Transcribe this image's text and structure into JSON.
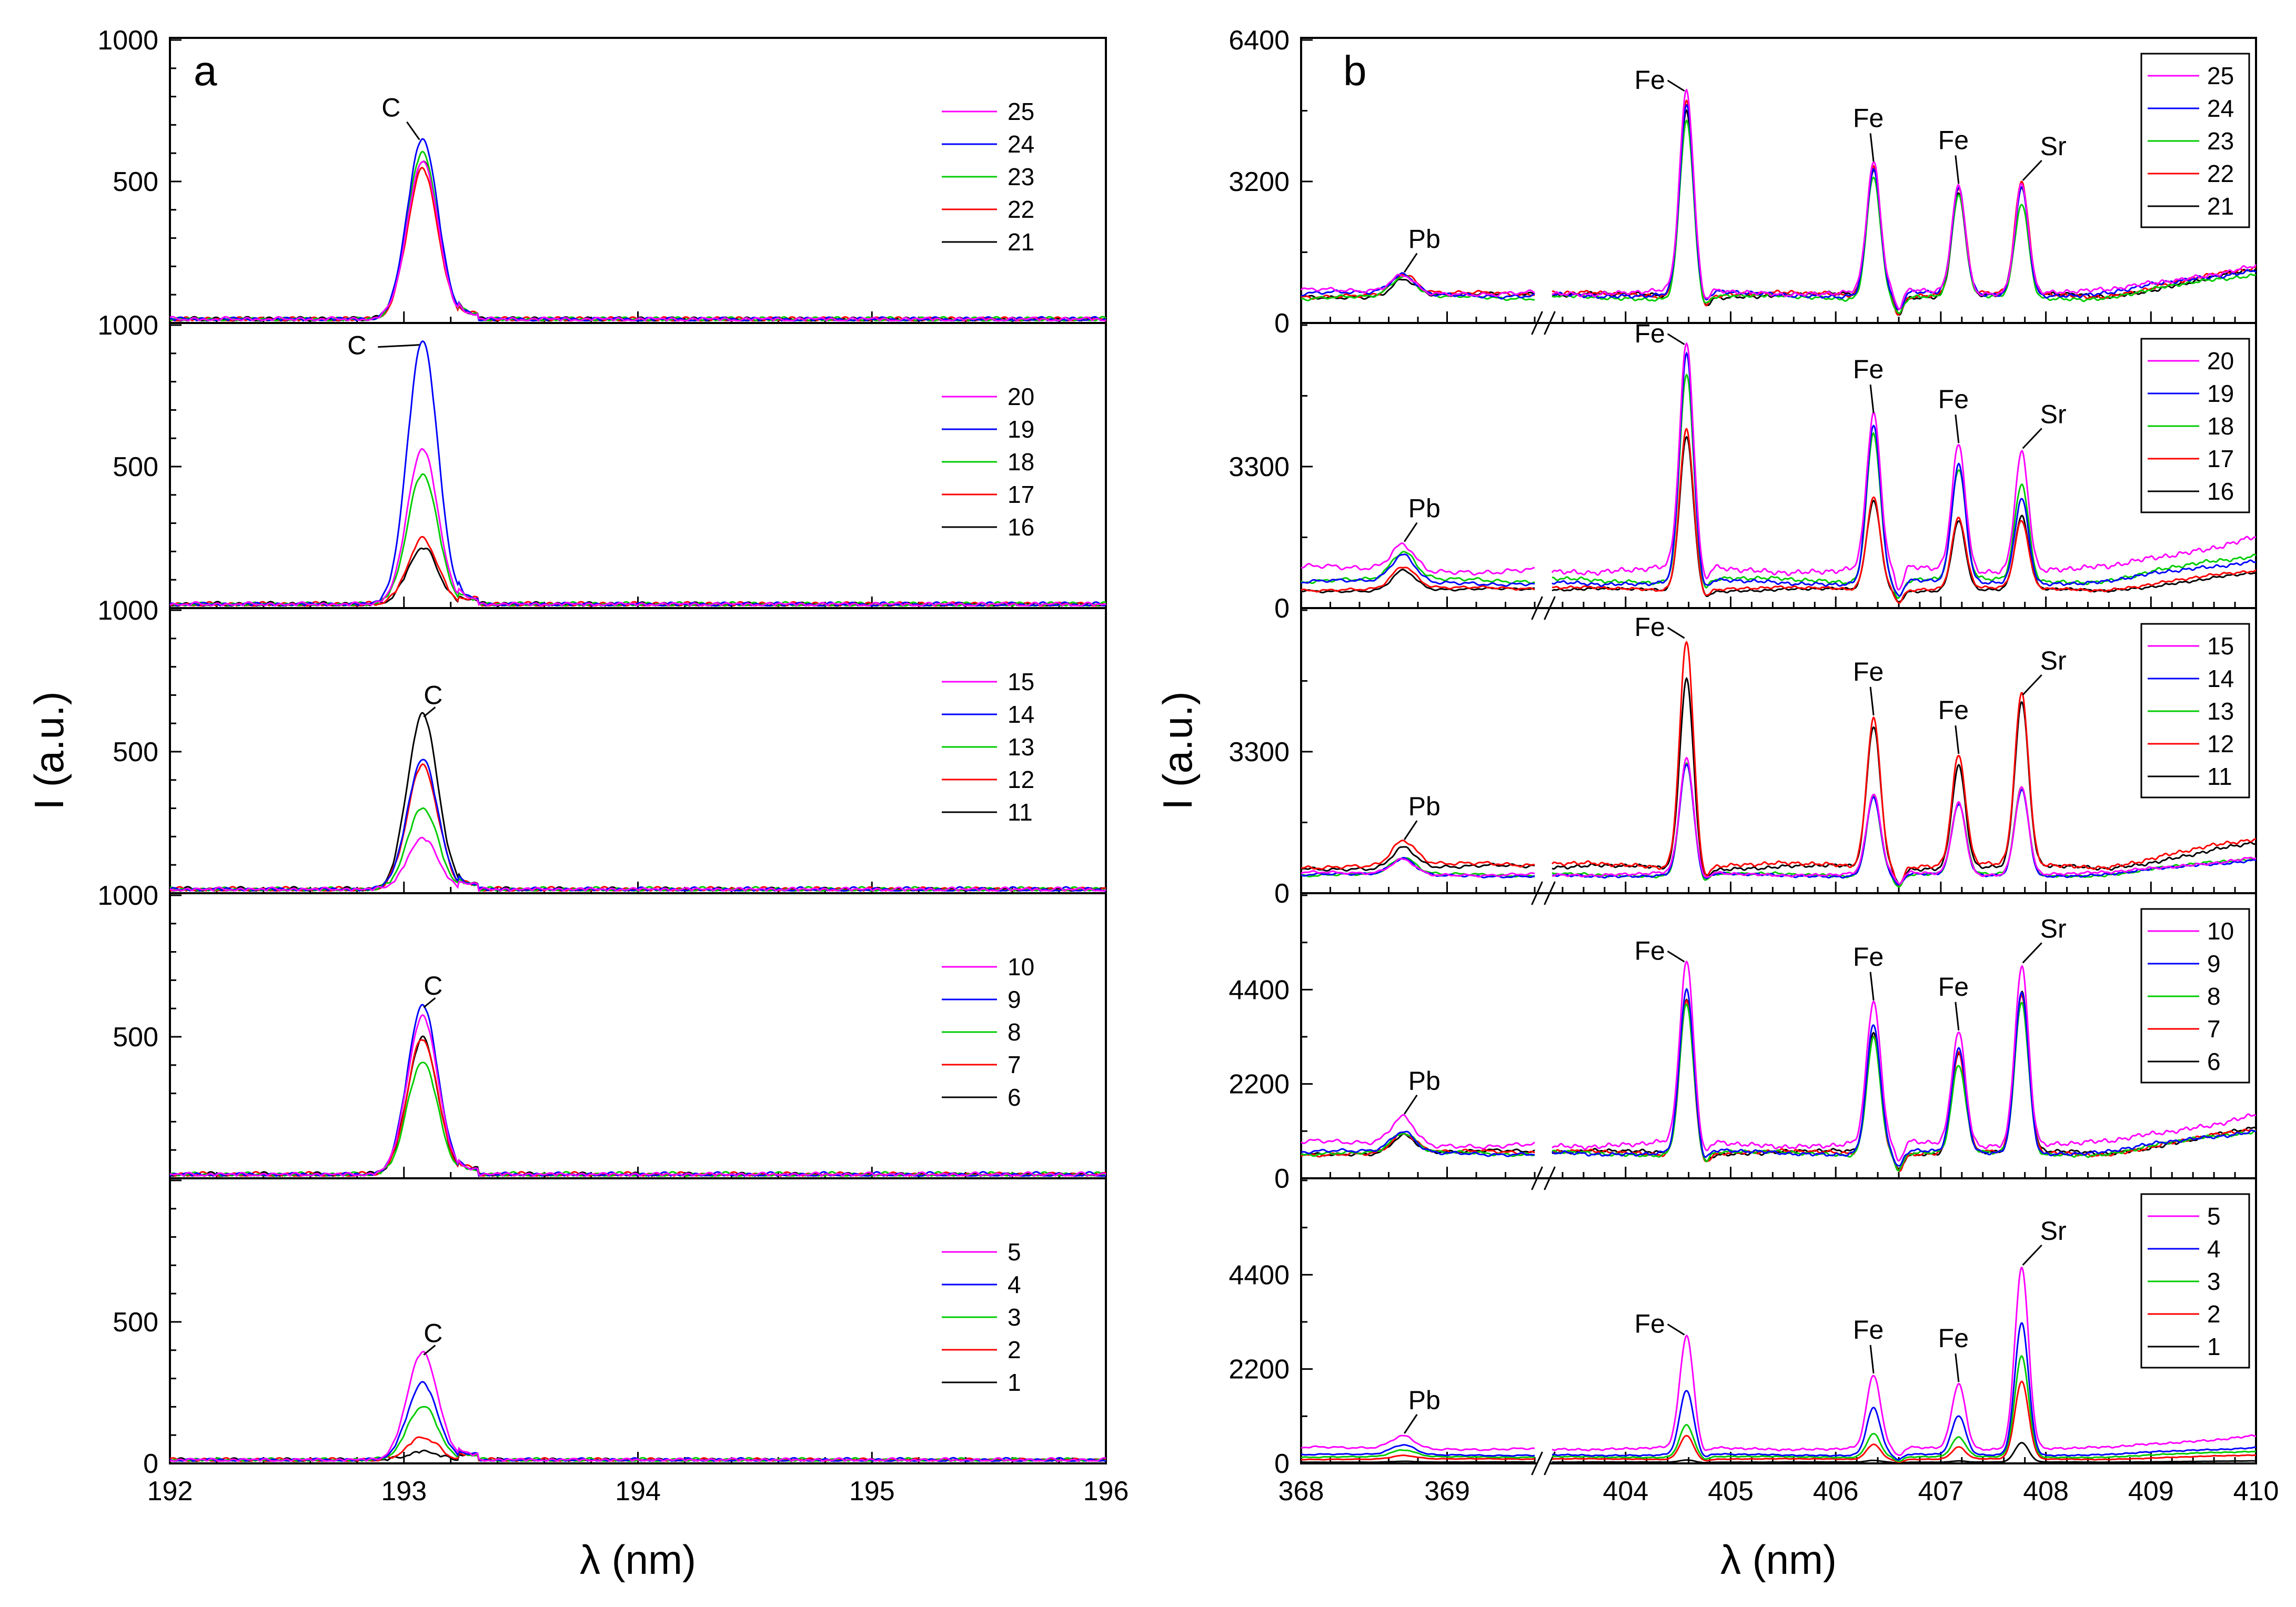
{
  "chart_data": [
    {
      "id": "a",
      "type": "line",
      "panel_letter": "a",
      "xlabel": "λ (nm)",
      "ylabel": "I (a.u.)",
      "xlim": [
        192,
        196
      ],
      "xticks": [
        "192",
        "193",
        "194",
        "195",
        "196"
      ],
      "x_tick_values": [
        192,
        193,
        194,
        195,
        196
      ],
      "subplots": [
        {
          "id": "a1",
          "ylim": [
            0,
            1000
          ],
          "yticks": [
            {
              "v": 500,
              "label": "500"
            },
            {
              "v": 1000,
              "label": "1000"
            }
          ],
          "legend": [
            "25",
            "24",
            "23",
            "22",
            "21"
          ],
          "series": [
            {
              "name": "25",
              "color": "#ff00ff",
              "peak": 560
            },
            {
              "name": "24",
              "color": "#0000ff",
              "peak": 640
            },
            {
              "name": "23",
              "color": "#00cc00",
              "peak": 590
            },
            {
              "name": "22",
              "color": "#ff0000",
              "peak": 530
            },
            {
              "name": "21",
              "color": "#000000",
              "peak": 560
            }
          ],
          "peaks": [
            {
              "element": "C",
              "x": 193.08
            }
          ],
          "noise": 15
        },
        {
          "id": "a2",
          "ylim": [
            0,
            1000
          ],
          "yticks": [
            {
              "v": 500,
              "label": "500"
            },
            {
              "v": 1000,
              "label": "1000"
            }
          ],
          "legend": [
            "20",
            "19",
            "18",
            "17",
            "16"
          ],
          "series": [
            {
              "name": "20",
              "color": "#ff00ff",
              "peak": 550
            },
            {
              "name": "19",
              "color": "#0000ff",
              "peak": 930
            },
            {
              "name": "18",
              "color": "#00cc00",
              "peak": 460
            },
            {
              "name": "17",
              "color": "#ff0000",
              "peak": 230
            },
            {
              "name": "16",
              "color": "#000000",
              "peak": 200
            }
          ],
          "peaks": [
            {
              "element": "C",
              "x": 193.08
            }
          ],
          "noise": 15
        },
        {
          "id": "a3",
          "ylim": [
            0,
            1000
          ],
          "yticks": [
            {
              "v": 500,
              "label": "500"
            },
            {
              "v": 1000,
              "label": "1000"
            }
          ],
          "legend": [
            "15",
            "14",
            "13",
            "12",
            "11"
          ],
          "series": [
            {
              "name": "15",
              "color": "#ff00ff",
              "peak": 180
            },
            {
              "name": "14",
              "color": "#0000ff",
              "peak": 460
            },
            {
              "name": "13",
              "color": "#00cc00",
              "peak": 290
            },
            {
              "name": "12",
              "color": "#ff0000",
              "peak": 440
            },
            {
              "name": "11",
              "color": "#000000",
              "peak": 620
            }
          ],
          "peaks": [
            {
              "element": "C",
              "x": 193.08
            }
          ],
          "noise": 15
        },
        {
          "id": "a4",
          "ylim": [
            0,
            1000
          ],
          "yticks": [
            {
              "v": 500,
              "label": "500"
            },
            {
              "v": 1000,
              "label": "1000"
            }
          ],
          "legend": [
            "10",
            "9",
            "8",
            "7",
            "6"
          ],
          "series": [
            {
              "name": "10",
              "color": "#ff00ff",
              "peak": 560
            },
            {
              "name": "9",
              "color": "#0000ff",
              "peak": 600
            },
            {
              "name": "8",
              "color": "#00cc00",
              "peak": 400
            },
            {
              "name": "7",
              "color": "#ff0000",
              "peak": 480
            },
            {
              "name": "6",
              "color": "#000000",
              "peak": 480
            }
          ],
          "peaks": [
            {
              "element": "C",
              "x": 193.08
            }
          ],
          "noise": 15
        },
        {
          "id": "a5",
          "ylim": [
            0,
            1000
          ],
          "yticks": [
            {
              "v": 0,
              "label": "0"
            },
            {
              "v": 500,
              "label": "500"
            }
          ],
          "legend": [
            "5",
            "4",
            "3",
            "2",
            "1"
          ],
          "series": [
            {
              "name": "5",
              "color": "#ff00ff",
              "peak": 380
            },
            {
              "name": "4",
              "color": "#0000ff",
              "peak": 270
            },
            {
              "name": "3",
              "color": "#00cc00",
              "peak": 190
            },
            {
              "name": "2",
              "color": "#ff0000",
              "peak": 80
            },
            {
              "name": "1",
              "color": "#000000",
              "peak": 30
            }
          ],
          "peaks": [
            {
              "element": "C",
              "x": 193.08
            }
          ],
          "noise": 12
        }
      ]
    },
    {
      "id": "b",
      "type": "line",
      "panel_letter": "b",
      "xlabel": "λ (nm)",
      "ylabel": "I (a.u.)",
      "x_segments": [
        [
          368.0,
          369.6
        ],
        [
          403.3,
          410.0
        ]
      ],
      "axis_break": "//",
      "xticks": [
        "368",
        "369",
        "404",
        "405",
        "406",
        "407",
        "408",
        "409",
        "410"
      ],
      "x_tick_values": [
        368,
        369,
        404,
        405,
        406,
        407,
        408,
        409,
        410
      ],
      "peak_positions": {
        "Pb": 368.7,
        "Fe1": 404.58,
        "Fe2": 406.36,
        "Fe3": 407.17,
        "Sr": 407.77
      },
      "subplots": [
        {
          "id": "b1",
          "ylim": [
            0,
            6400
          ],
          "yticks": [
            {
              "v": 0,
              "label": "0"
            },
            {
              "v": 3200,
              "label": "3200"
            },
            {
              "v": 6400,
              "label": "6400"
            }
          ],
          "legend": [
            "25",
            "24",
            "23",
            "22",
            "21"
          ],
          "series": [
            {
              "name": "25",
              "color": "#ff00ff",
              "base": 700,
              "Pb": 1100,
              "Fe1": 5200,
              "Fe2": 3600,
              "Fe3": 3100,
              "Sr": 3200
            },
            {
              "name": "24",
              "color": "#0000ff",
              "base": 650,
              "Pb": 1050,
              "Fe1": 4900,
              "Fe2": 3500,
              "Fe3": 3000,
              "Sr": 3100
            },
            {
              "name": "23",
              "color": "#00cc00",
              "base": 580,
              "Pb": 1000,
              "Fe1": 4600,
              "Fe2": 3350,
              "Fe3": 2850,
              "Sr": 2700
            },
            {
              "name": "22",
              "color": "#ff0000",
              "base": 640,
              "Pb": 1080,
              "Fe1": 5100,
              "Fe2": 3550,
              "Fe3": 3050,
              "Sr": 3150
            },
            {
              "name": "21",
              "color": "#000000",
              "base": 620,
              "Pb": 1020,
              "Fe1": 4800,
              "Fe2": 3450,
              "Fe3": 2950,
              "Sr": 3000
            }
          ],
          "peak_labels": [
            {
              "text": "Pb",
              "ref": "Pb"
            },
            {
              "text": "Fe",
              "ref": "Fe1"
            },
            {
              "text": "Fe",
              "ref": "Fe2"
            },
            {
              "text": "Fe",
              "ref": "Fe3"
            },
            {
              "text": "Sr",
              "ref": "Sr"
            }
          ]
        },
        {
          "id": "b2",
          "ylim": [
            0,
            6600
          ],
          "yticks": [
            {
              "v": 0,
              "label": "0"
            },
            {
              "v": 3300,
              "label": "3300"
            }
          ],
          "legend": [
            "20",
            "19",
            "18",
            "17",
            "16"
          ],
          "series": [
            {
              "name": "20",
              "color": "#ff00ff",
              "base": 900,
              "Pb": 1500,
              "Fe1": 6100,
              "Fe2": 4500,
              "Fe3": 3800,
              "Sr": 3700
            },
            {
              "name": "19",
              "color": "#0000ff",
              "base": 600,
              "Pb": 1200,
              "Fe1": 5900,
              "Fe2": 4300,
              "Fe3": 3300,
              "Sr": 2600
            },
            {
              "name": "18",
              "color": "#00cc00",
              "base": 650,
              "Pb": 1250,
              "Fe1": 5500,
              "Fe2": 4100,
              "Fe3": 3200,
              "Sr": 2900
            },
            {
              "name": "17",
              "color": "#ff0000",
              "base": 450,
              "Pb": 950,
              "Fe1": 4200,
              "Fe2": 2600,
              "Fe3": 2100,
              "Sr": 2000
            },
            {
              "name": "16",
              "color": "#000000",
              "base": 420,
              "Pb": 900,
              "Fe1": 4000,
              "Fe2": 2500,
              "Fe3": 2050,
              "Sr": 2100
            }
          ],
          "peak_labels": [
            {
              "text": "Pb",
              "ref": "Pb"
            },
            {
              "text": "Fe",
              "ref": "Fe1"
            },
            {
              "text": "Fe",
              "ref": "Fe2"
            },
            {
              "text": "Fe",
              "ref": "Fe3"
            },
            {
              "text": "Sr",
              "ref": "Sr"
            }
          ]
        },
        {
          "id": "b3",
          "ylim": [
            0,
            6600
          ],
          "yticks": [
            {
              "v": 0,
              "label": "0"
            },
            {
              "v": 3300,
              "label": "3300"
            }
          ],
          "legend": [
            "15",
            "14",
            "13",
            "12",
            "11"
          ],
          "series": [
            {
              "name": "15",
              "color": "#ff00ff",
              "base": 450,
              "Pb": 800,
              "Fe1": 3100,
              "Fe2": 2300,
              "Fe3": 2100,
              "Sr": 2500
            },
            {
              "name": "14",
              "color": "#0000ff",
              "base": 420,
              "Pb": 780,
              "Fe1": 3000,
              "Fe2": 2250,
              "Fe3": 2050,
              "Sr": 2450
            },
            {
              "name": "13",
              "color": "#00cc00",
              "base": 430,
              "Pb": 790,
              "Fe1": 3050,
              "Fe2": 2280,
              "Fe3": 2080,
              "Sr": 2480
            },
            {
              "name": "12",
              "color": "#ff0000",
              "base": 650,
              "Pb": 1200,
              "Fe1": 5900,
              "Fe2": 4100,
              "Fe3": 3200,
              "Sr": 4600
            },
            {
              "name": "11",
              "color": "#000000",
              "base": 600,
              "Pb": 1100,
              "Fe1": 5000,
              "Fe2": 3900,
              "Fe3": 3000,
              "Sr": 4400
            }
          ],
          "peak_labels": [
            {
              "text": "Pb",
              "ref": "Pb"
            },
            {
              "text": "Fe",
              "ref": "Fe1"
            },
            {
              "text": "Fe",
              "ref": "Fe2"
            },
            {
              "text": "Fe",
              "ref": "Fe3"
            },
            {
              "text": "Sr",
              "ref": "Sr"
            }
          ]
        },
        {
          "id": "b4",
          "ylim": [
            0,
            6600
          ],
          "yticks": [
            {
              "v": 0,
              "label": "0"
            },
            {
              "v": 2200,
              "label": "2200"
            },
            {
              "v": 4400,
              "label": "4400"
            }
          ],
          "legend": [
            "10",
            "9",
            "8",
            "7",
            "6"
          ],
          "series": [
            {
              "name": "10",
              "color": "#ff00ff",
              "base": 800,
              "Pb": 1450,
              "Fe1": 5000,
              "Fe2": 4100,
              "Fe3": 3400,
              "Sr": 5000
            },
            {
              "name": "9",
              "color": "#0000ff",
              "base": 600,
              "Pb": 1050,
              "Fe1": 4400,
              "Fe2": 3600,
              "Fe3": 3000,
              "Sr": 4400
            },
            {
              "name": "8",
              "color": "#00cc00",
              "base": 580,
              "Pb": 1000,
              "Fe1": 4100,
              "Fe2": 3300,
              "Fe3": 2600,
              "Sr": 4100
            },
            {
              "name": "7",
              "color": "#ff0000",
              "base": 590,
              "Pb": 1020,
              "Fe1": 4150,
              "Fe2": 3350,
              "Fe3": 2900,
              "Sr": 4200
            },
            {
              "name": "6",
              "color": "#000000",
              "base": 600,
              "Pb": 1030,
              "Fe1": 4200,
              "Fe2": 3400,
              "Fe3": 2950,
              "Sr": 4300
            }
          ],
          "peak_labels": [
            {
              "text": "Pb",
              "ref": "Pb"
            },
            {
              "text": "Fe",
              "ref": "Fe1"
            },
            {
              "text": "Fe",
              "ref": "Fe2"
            },
            {
              "text": "Fe",
              "ref": "Fe3"
            },
            {
              "text": "Sr",
              "ref": "Sr"
            }
          ]
        },
        {
          "id": "b5",
          "ylim": [
            0,
            6600
          ],
          "yticks": [
            {
              "v": 0,
              "label": "0"
            },
            {
              "v": 2200,
              "label": "2200"
            },
            {
              "v": 4400,
              "label": "4400"
            }
          ],
          "legend": [
            "5",
            "4",
            "3",
            "2",
            "1"
          ],
          "series": [
            {
              "name": "5",
              "color": "#ff00ff",
              "base": 350,
              "Pb": 650,
              "Fe1": 2950,
              "Fe2": 2050,
              "Fe3": 1850,
              "Sr": 4600
            },
            {
              "name": "4",
              "color": "#0000ff",
              "base": 200,
              "Pb": 420,
              "Fe1": 1700,
              "Fe2": 1300,
              "Fe3": 1100,
              "Sr": 3300
            },
            {
              "name": "3",
              "color": "#00cc00",
              "base": 150,
              "Pb": 300,
              "Fe1": 900,
              "Fe2": 700,
              "Fe3": 600,
              "Sr": 2500
            },
            {
              "name": "2",
              "color": "#ff0000",
              "base": 100,
              "Pb": 180,
              "Fe1": 650,
              "Fe2": 450,
              "Fe3": 380,
              "Sr": 1900
            },
            {
              "name": "1",
              "color": "#000000",
              "base": 30,
              "Pb": 50,
              "Fe1": 80,
              "Fe2": 70,
              "Fe3": 60,
              "Sr": 480
            }
          ],
          "peak_labels": [
            {
              "text": "Pb",
              "ref": "Pb"
            },
            {
              "text": "Fe",
              "ref": "Fe1"
            },
            {
              "text": "Fe",
              "ref": "Fe2"
            },
            {
              "text": "Fe",
              "ref": "Fe3"
            },
            {
              "text": "Sr",
              "ref": "Sr"
            }
          ]
        }
      ]
    }
  ]
}
